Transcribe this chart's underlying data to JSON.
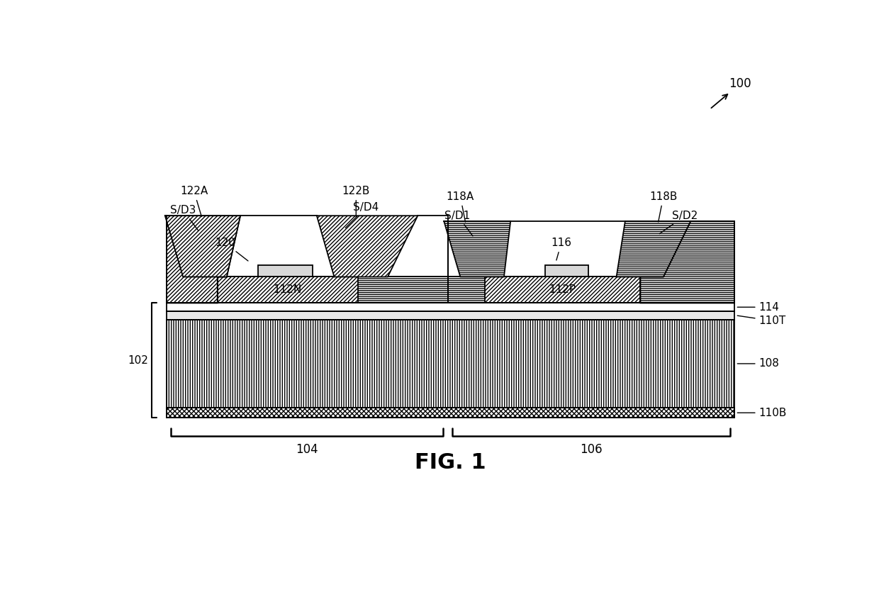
{
  "fig_label": "FIG. 1",
  "ref_100": "100",
  "ref_102": "102",
  "ref_104": "104",
  "ref_106": "106",
  "ref_108": "108",
  "ref_110T": "110T",
  "ref_110B": "110B",
  "ref_112N": "112N",
  "ref_112P": "112P",
  "ref_114": "114",
  "ref_116": "116",
  "ref_118A": "118A",
  "ref_118B": "118B",
  "ref_120": "120",
  "ref_122A": "122A",
  "ref_122B": "122B",
  "ref_SD1": "S/D1",
  "ref_SD2": "S/D2",
  "ref_SD3": "S/D3",
  "ref_SD4": "S/D4",
  "bg_color": "#ffffff",
  "line_color": "#000000"
}
